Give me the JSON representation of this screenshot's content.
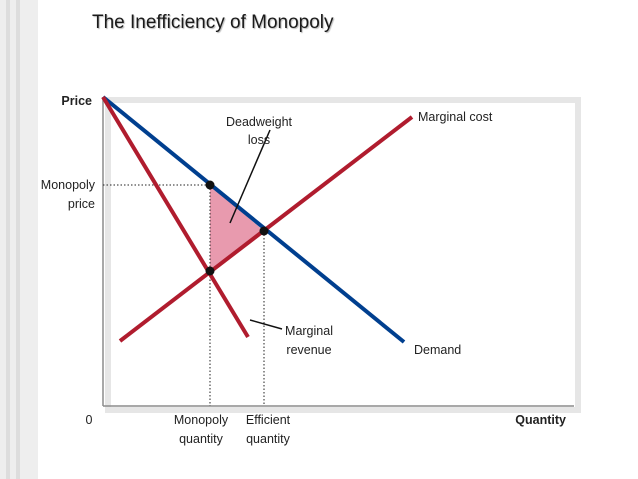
{
  "title": "The Inefficiency of Monopoly",
  "axes": {
    "y_label": "Price",
    "x_label": "Quantity",
    "origin_label": "0"
  },
  "labels": {
    "monopoly_price_line1": "Monopoly",
    "monopoly_price_line2": "price",
    "monopoly_quantity_line1": "Monopoly",
    "monopoly_quantity_line2": "quantity",
    "efficient_quantity_line1": "Efficient",
    "efficient_quantity_line2": "quantity",
    "deadweight_loss_line1": "Deadweight",
    "deadweight_loss_line2": "loss",
    "marginal_cost": "Marginal cost",
    "marginal_revenue_line1": "Marginal",
    "marginal_revenue_line2": "revenue",
    "demand": "Demand"
  },
  "colors": {
    "demand": "#003f8f",
    "marginal_cost": "#b01c2e",
    "marginal_revenue": "#b01c2e",
    "deadweight_fill": "#e89aae",
    "axis": "#999999",
    "dots": "#111111"
  }
}
